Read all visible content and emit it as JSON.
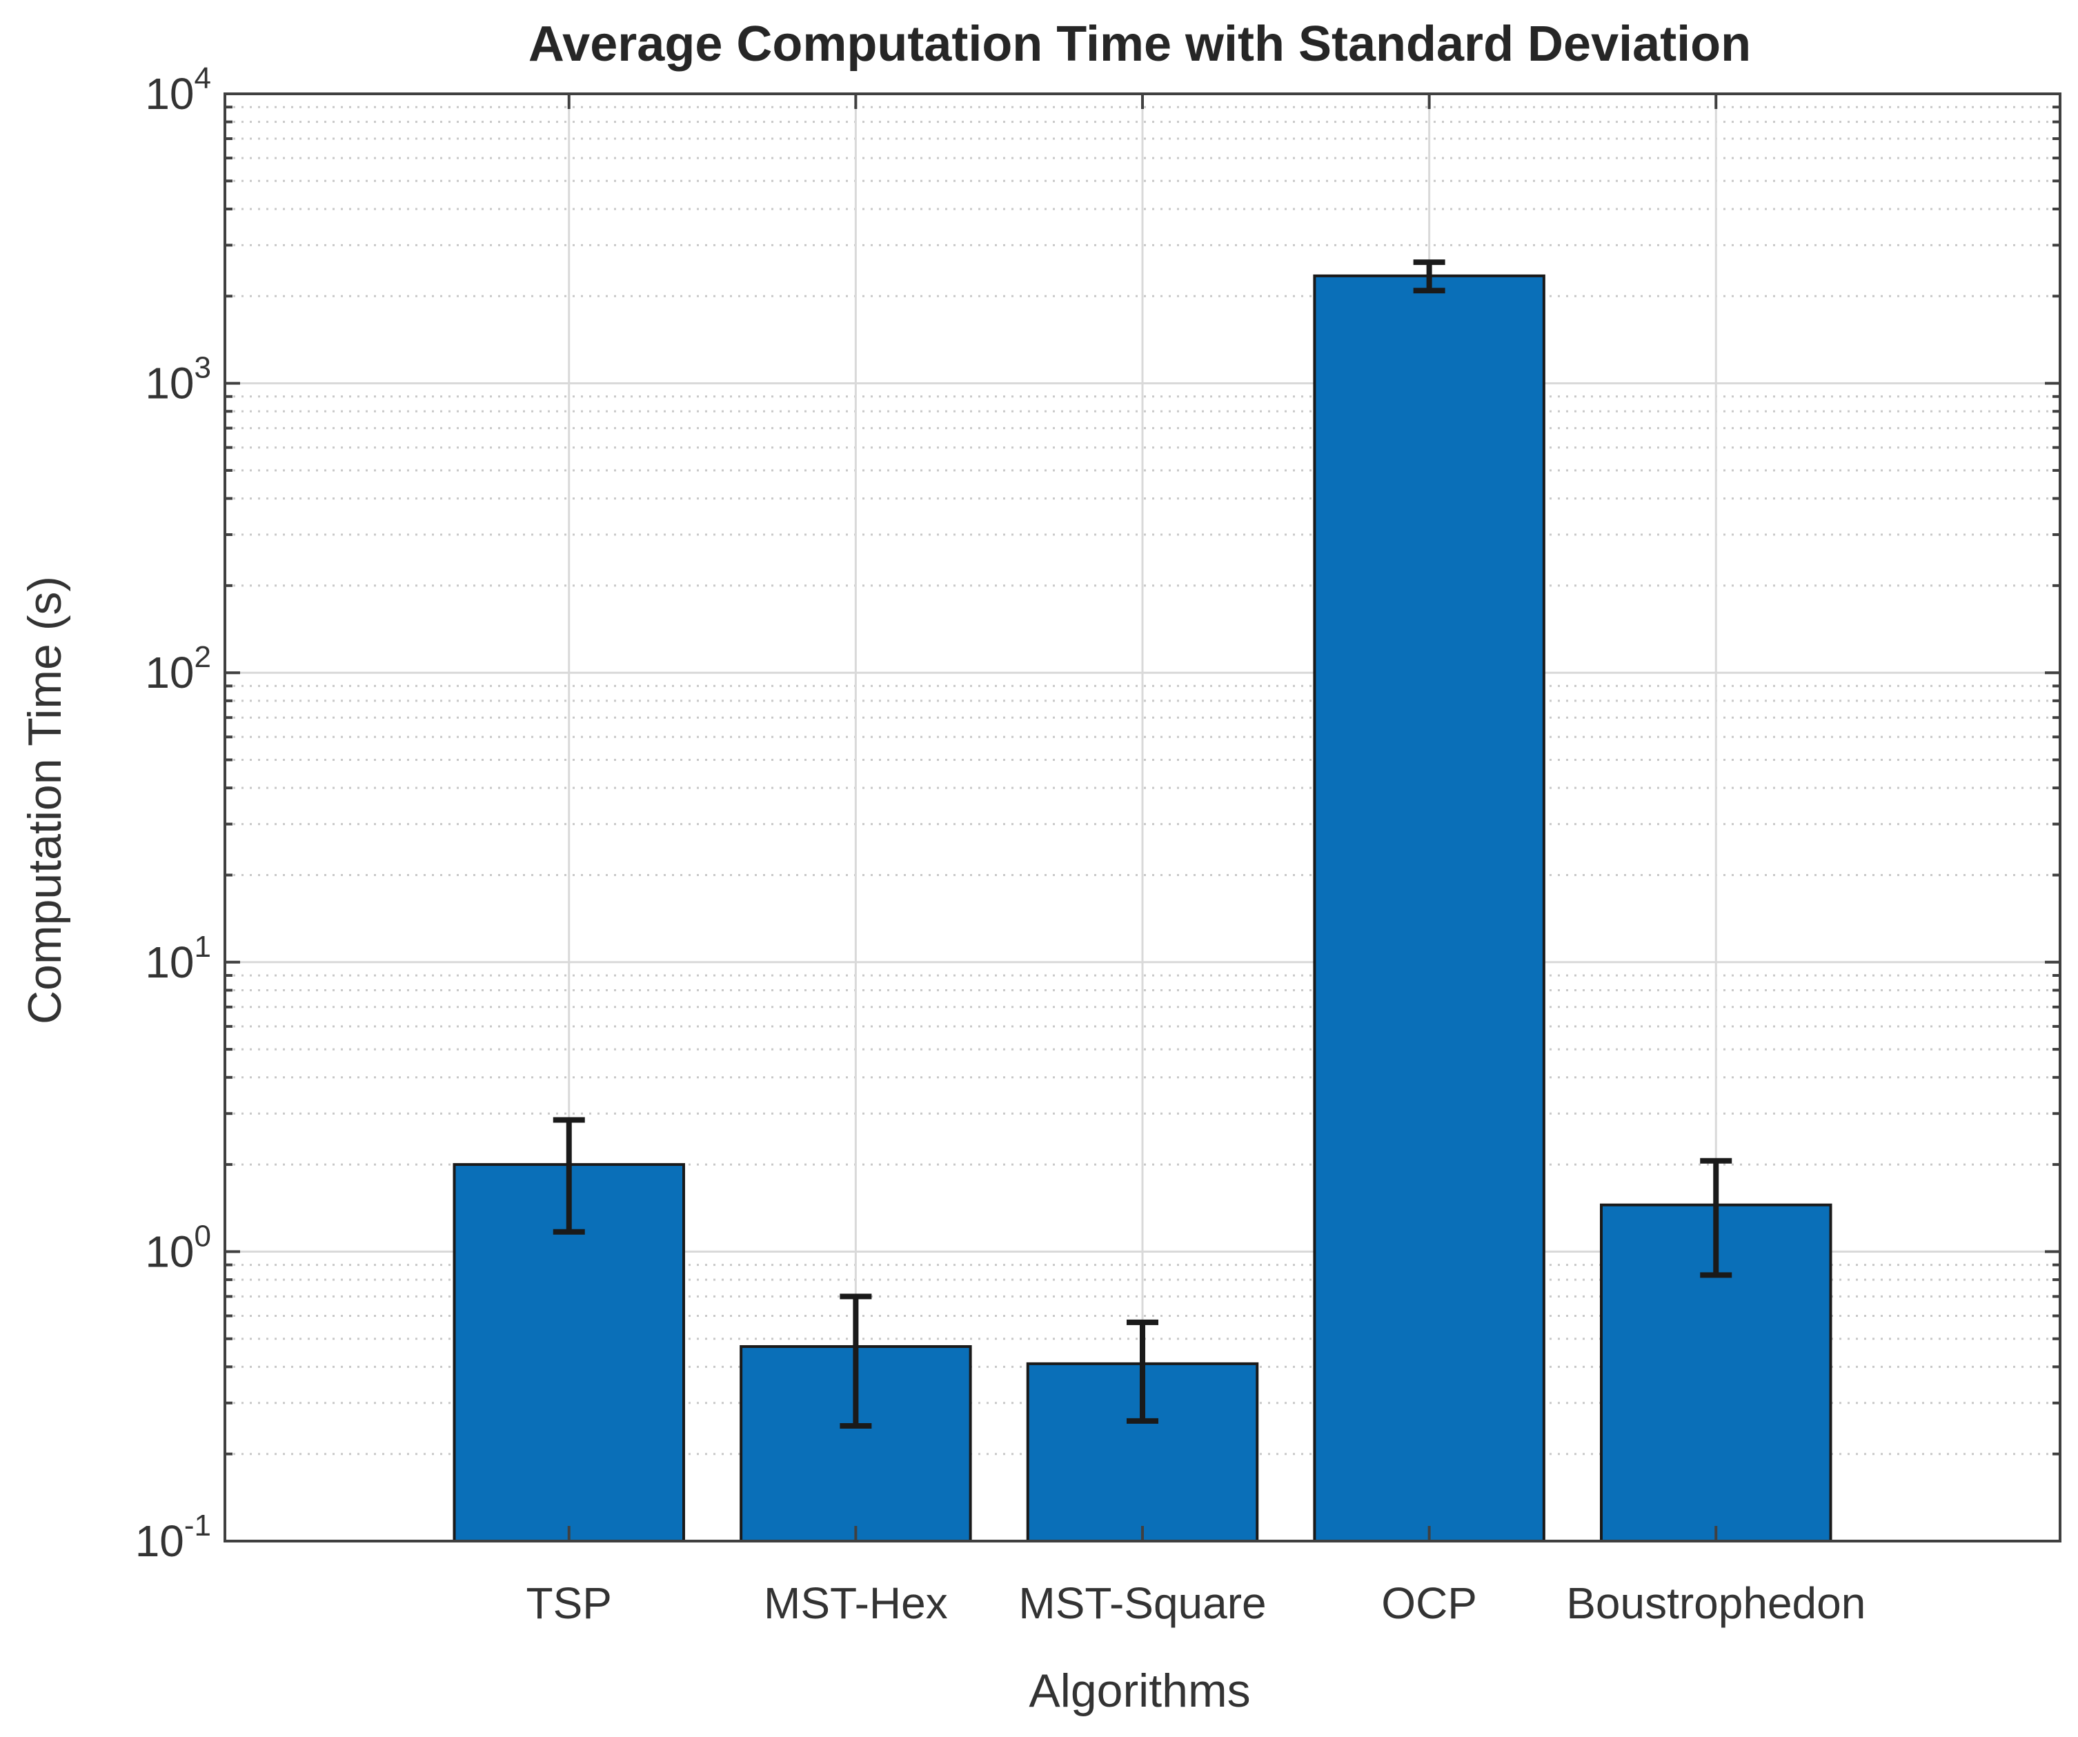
{
  "chart_data": {
    "type": "bar",
    "title": "Average Computation Time with Standard Deviation",
    "xlabel": "Algorithms",
    "ylabel": "Computation Time (s)",
    "yscale": "log",
    "ylim": [
      0.1,
      10000
    ],
    "xlim": [
      -0.2,
      6.2
    ],
    "y_ticks": [
      {
        "base": "10",
        "exp": "-1",
        "value": 0.1
      },
      {
        "base": "10",
        "exp": "0",
        "value": 1
      },
      {
        "base": "10",
        "exp": "1",
        "value": 10
      },
      {
        "base": "10",
        "exp": "2",
        "value": 100
      },
      {
        "base": "10",
        "exp": "3",
        "value": 1000
      },
      {
        "base": "10",
        "exp": "4",
        "value": 10000
      }
    ],
    "grid": true,
    "minor_grid": true,
    "categories": [
      "TSP",
      "MST-Hex",
      "MST-Square",
      "OCP",
      "Boustrophedon"
    ],
    "values": [
      2.0,
      0.47,
      0.41,
      2350,
      1.45
    ],
    "error_low": [
      1.17,
      0.25,
      0.26,
      2090,
      0.83
    ],
    "error_high": [
      2.85,
      0.7,
      0.57,
      2620,
      2.06
    ],
    "bar_color": "#0a6fb8",
    "edge_color": "#1a1a1a",
    "error_color": "#1a1a1a",
    "grid_color": "#d9d9d9",
    "axis_color": "#404040"
  }
}
